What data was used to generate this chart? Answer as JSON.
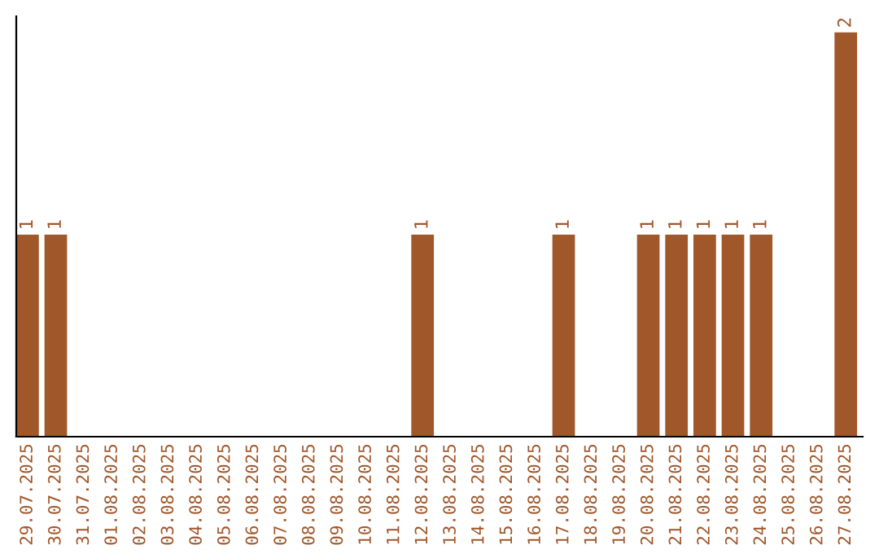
{
  "chart_data": {
    "type": "bar",
    "categories": [
      "29.07.2025",
      "30.07.2025",
      "31.07.2025",
      "01.08.2025",
      "02.08.2025",
      "03.08.2025",
      "04.08.2025",
      "05.08.2025",
      "06.08.2025",
      "07.08.2025",
      "08.08.2025",
      "09.08.2025",
      "10.08.2025",
      "11.08.2025",
      "12.08.2025",
      "13.08.2025",
      "14.08.2025",
      "15.08.2025",
      "16.08.2025",
      "17.08.2025",
      "18.08.2025",
      "19.08.2025",
      "20.08.2025",
      "21.08.2025",
      "22.08.2025",
      "23.08.2025",
      "24.08.2025",
      "25.08.2025",
      "26.08.2025",
      "27.08.2025"
    ],
    "values": [
      1,
      1,
      0,
      0,
      0,
      0,
      0,
      0,
      0,
      0,
      0,
      0,
      0,
      0,
      1,
      0,
      0,
      0,
      0,
      1,
      0,
      0,
      1,
      1,
      1,
      1,
      1,
      0,
      0,
      2
    ],
    "value_labels": [
      "1",
      "1",
      null,
      null,
      null,
      null,
      null,
      null,
      null,
      null,
      null,
      null,
      null,
      null,
      "1",
      null,
      null,
      null,
      null,
      "1",
      null,
      null,
      "1",
      "1",
      "1",
      "1",
      "1",
      null,
      null,
      "2"
    ],
    "color": "#a0572a",
    "tick_labels": "x",
    "grid": false,
    "legend": false
  }
}
